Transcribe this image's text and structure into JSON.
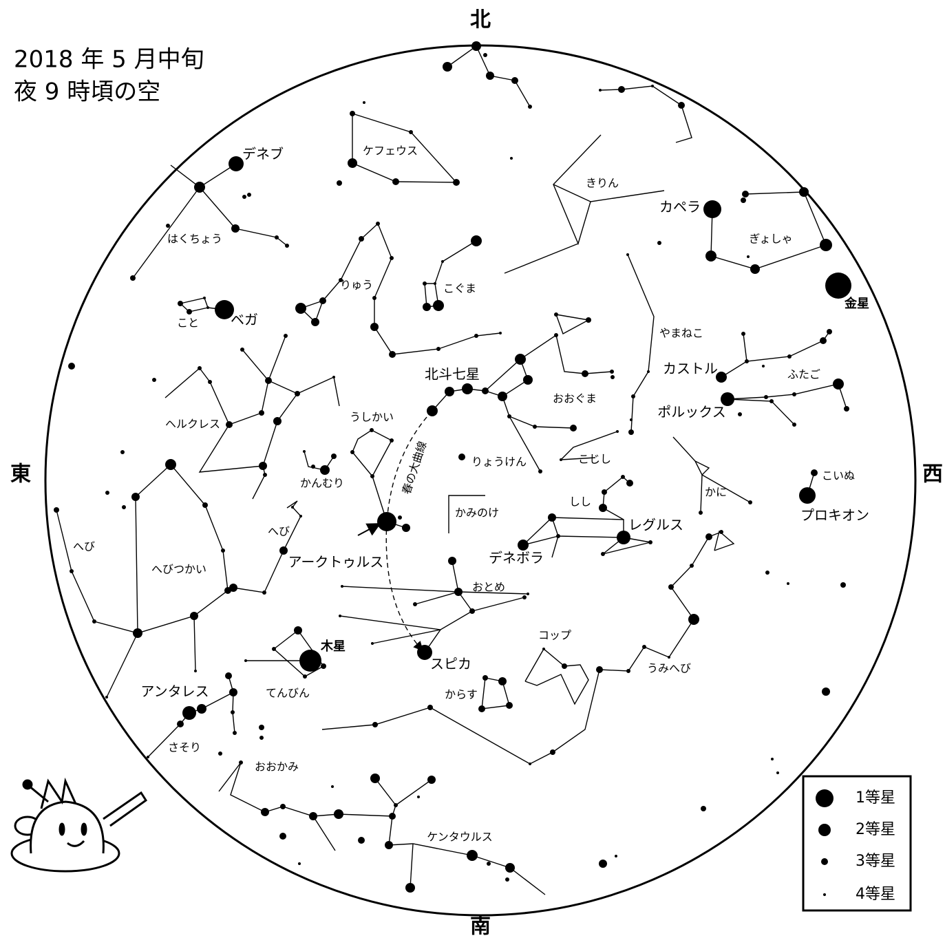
{
  "title": [
    "2018 年 5 月中旬",
    "夜 9 時頃の空"
  ],
  "directions": {
    "north": "北",
    "south": "南",
    "east": "東",
    "west": "西"
  },
  "constellations": [
    "ケフェウス",
    "きりん",
    "ぎょしゃ",
    "はくちょう",
    "りゅう",
    "こぐま",
    "こと",
    "やまねこ",
    "ふたご",
    "ヘルクレス",
    "おおぐま",
    "うしかい",
    "かんむり",
    "りょうけん",
    "こじし",
    "こいぬ",
    "かに",
    "しし",
    "かみのけ",
    "へび",
    "へび",
    "へびつかい",
    "おとめ",
    "コップ",
    "うみへび",
    "てんびん",
    "からす",
    "さそり",
    "おおかみ",
    "ケンタウルス"
  ],
  "stars": [
    "デネブ",
    "カペラ",
    "ベガ",
    "カストル",
    "ポルックス",
    "北斗七星",
    "レグルス",
    "プロキオン",
    "アークトゥルス",
    "デネボラ",
    "スピカ",
    "アンタレス"
  ],
  "planets": [
    "金星",
    "木星"
  ],
  "annotation": "春の大曲線",
  "legend": [
    "1等星",
    "2等星",
    "3等星",
    "4等星"
  ]
}
